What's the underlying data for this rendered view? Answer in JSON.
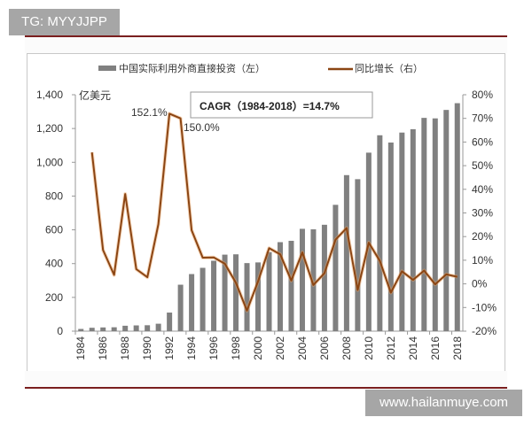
{
  "watermarks": {
    "top": "TG: MYYJJPP",
    "bottom": "www.hailanmuye.com"
  },
  "legend": {
    "bar_label": "中国实际利用外商直接投资（左）",
    "line_label": "同比增长（右）"
  },
  "annotations": {
    "left_unit": "亿美元",
    "cagr": "CAGR（1984-2018）=14.7%",
    "peak_1992": "152.1%",
    "peak_1993": "150.0%"
  },
  "colors": {
    "bar": "#808080",
    "line": "#8B4513",
    "line_glow": "#E8A060",
    "rule": "#7a1f1f",
    "watermark_bg": "#a6a6a6"
  },
  "chart_data": {
    "type": "bar+line",
    "title": "",
    "xlabel": "",
    "ylabel_left": "亿美元",
    "ylabel_right": "",
    "left_ylim": [
      0,
      1400
    ],
    "left_ticks": [
      "0",
      "200",
      "400",
      "600",
      "800",
      "1,000",
      "1,200",
      "1,400"
    ],
    "right_ylim": [
      -20,
      80
    ],
    "right_ticks": [
      "-20%",
      "-10%",
      "0%",
      "10%",
      "20%",
      "30%",
      "40%",
      "50%",
      "60%",
      "70%",
      "80%"
    ],
    "x_tick_labels": [
      "1984",
      "1986",
      "1988",
      "1990",
      "1992",
      "1994",
      "1996",
      "1998",
      "2000",
      "2002",
      "2004",
      "2006",
      "2008",
      "2010",
      "2012",
      "2014",
      "2016",
      "2018"
    ],
    "categories": [
      "1984",
      "1985",
      "1986",
      "1987",
      "1988",
      "1989",
      "1990",
      "1991",
      "1992",
      "1993",
      "1994",
      "1995",
      "1996",
      "1997",
      "1998",
      "1999",
      "2000",
      "2001",
      "2002",
      "2003",
      "2004",
      "2005",
      "2006",
      "2007",
      "2008",
      "2009",
      "2010",
      "2011",
      "2012",
      "2013",
      "2014",
      "2015",
      "2016",
      "2017",
      "2018"
    ],
    "series": [
      {
        "name": "中国实际利用外商直接投资（左）",
        "type": "bar",
        "axis": "left",
        "values": [
          13,
          20,
          22,
          23,
          32,
          34,
          35,
          44,
          110,
          275,
          338,
          375,
          417,
          453,
          455,
          403,
          407,
          468,
          527,
          535,
          606,
          603,
          630,
          748,
          924,
          900,
          1057,
          1160,
          1117,
          1176,
          1196,
          1263,
          1260,
          1310,
          1350
        ]
      },
      {
        "name": "同比增长（右）",
        "type": "line",
        "axis": "right",
        "unit": "%",
        "values": [
          null,
          55.6,
          14.3,
          3.8,
          38.0,
          6.2,
          2.8,
          25.2,
          152.1,
          150.0,
          22.7,
          11.1,
          11.2,
          8.5,
          0.5,
          -11.3,
          1.0,
          15.1,
          12.5,
          1.4,
          13.3,
          -0.5,
          4.5,
          18.7,
          23.6,
          -2.6,
          17.4,
          9.7,
          -3.7,
          5.3,
          1.7,
          5.6,
          -0.2,
          4.0,
          3.0
        ],
        "display_clip_note": "1992 and 1993 values drawn near top of axis (~72% and ~70%) with data labels"
      }
    ],
    "annotations": [
      "152.1%",
      "150.0%",
      "CAGR（1984-2018）=14.7%"
    ],
    "legend_position": "top",
    "grid": false
  }
}
